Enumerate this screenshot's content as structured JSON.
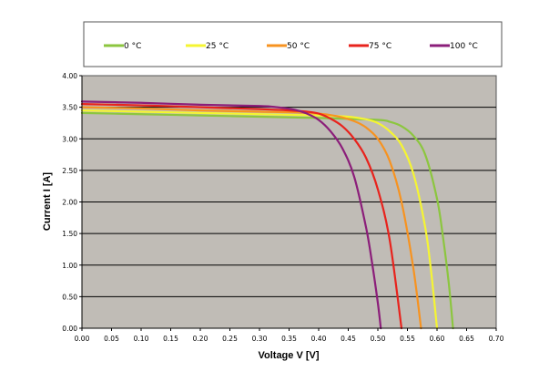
{
  "chart_data": {
    "type": "line",
    "title": "",
    "xlabel": "Voltage V  [V]",
    "ylabel": "Current I  [A]",
    "xlim": [
      0.0,
      0.7
    ],
    "ylim": [
      0.0,
      4.0
    ],
    "x_ticks": [
      "0.00",
      "0.05",
      "0.10",
      "0.15",
      "0.20",
      "0.25",
      "0.30",
      "0.35",
      "0.40",
      "0.45",
      "0.50",
      "0.55",
      "0.60",
      "0.65",
      "0.70"
    ],
    "y_ticks": [
      "0.00",
      "0.50",
      "1.00",
      "1.50",
      "2.00",
      "2.50",
      "3.00",
      "3.50",
      "4.00"
    ],
    "grid": "horizontal",
    "legend_position": "top",
    "plot_background": "#C0BCB6",
    "series": [
      {
        "name": "0 °C",
        "color": "#8CC63F",
        "x": [
          0.0,
          0.1,
          0.2,
          0.3,
          0.4,
          0.5,
          0.52,
          0.54,
          0.56,
          0.58,
          0.6,
          0.61,
          0.62,
          0.627
        ],
        "y": [
          3.41,
          3.39,
          3.37,
          3.35,
          3.33,
          3.3,
          3.27,
          3.2,
          3.05,
          2.75,
          2.05,
          1.45,
          0.7,
          0.0
        ]
      },
      {
        "name": "25 °C",
        "color": "#F5F532",
        "x": [
          0.0,
          0.1,
          0.2,
          0.3,
          0.4,
          0.45,
          0.48,
          0.5,
          0.52,
          0.54,
          0.56,
          0.58,
          0.59,
          0.6
        ],
        "y": [
          3.45,
          3.43,
          3.41,
          3.39,
          3.37,
          3.35,
          3.31,
          3.25,
          3.12,
          2.9,
          2.45,
          1.6,
          0.9,
          0.0
        ]
      },
      {
        "name": "50 °C",
        "color": "#F79320",
        "x": [
          0.0,
          0.1,
          0.2,
          0.3,
          0.35,
          0.4,
          0.43,
          0.46,
          0.48,
          0.5,
          0.52,
          0.54,
          0.56,
          0.573
        ],
        "y": [
          3.5,
          3.48,
          3.45,
          3.43,
          3.42,
          3.4,
          3.36,
          3.28,
          3.18,
          3.0,
          2.65,
          2.0,
          0.95,
          0.0
        ]
      },
      {
        "name": "75 °C",
        "color": "#E8231D",
        "x": [
          0.0,
          0.1,
          0.2,
          0.3,
          0.35,
          0.38,
          0.4,
          0.42,
          0.44,
          0.46,
          0.48,
          0.5,
          0.52,
          0.54
        ],
        "y": [
          3.55,
          3.53,
          3.5,
          3.47,
          3.45,
          3.43,
          3.4,
          3.32,
          3.2,
          3.0,
          2.7,
          2.2,
          1.4,
          0.0
        ]
      },
      {
        "name": "100 °C",
        "color": "#8B1E7A",
        "x": [
          0.0,
          0.1,
          0.2,
          0.3,
          0.33,
          0.36,
          0.38,
          0.4,
          0.42,
          0.44,
          0.46,
          0.48,
          0.49,
          0.5,
          0.505
        ],
        "y": [
          3.59,
          3.57,
          3.54,
          3.52,
          3.5,
          3.46,
          3.4,
          3.3,
          3.12,
          2.85,
          2.4,
          1.6,
          1.05,
          0.4,
          0.0
        ]
      }
    ]
  }
}
